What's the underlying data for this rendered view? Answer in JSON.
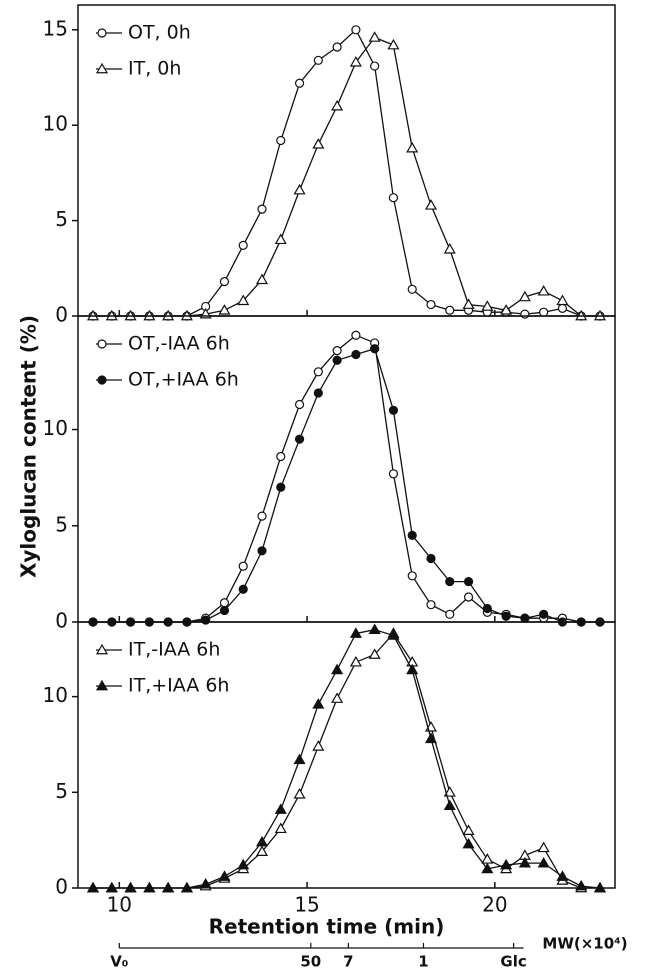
{
  "chart_data": [
    {
      "type": "line",
      "xlim": [
        8.9,
        23.2
      ],
      "ylim": [
        0,
        16.3
      ],
      "yticks": [
        0,
        5,
        10,
        15
      ],
      "legend": "upper left",
      "x": [
        9.3,
        9.8,
        10.3,
        10.8,
        11.3,
        11.8,
        12.3,
        12.8,
        13.3,
        13.8,
        14.3,
        14.8,
        15.3,
        15.8,
        16.3,
        16.8,
        17.3,
        17.8,
        18.3,
        18.8,
        19.3,
        19.8,
        20.3,
        20.8,
        21.3,
        21.8,
        22.3,
        22.8
      ],
      "series": [
        {
          "name": "OT, 0h",
          "color": "#111111",
          "marker": "circle",
          "filled": false,
          "values": [
            0,
            0,
            0,
            0,
            0,
            0,
            0.5,
            1.8,
            3.7,
            5.6,
            9.2,
            12.2,
            13.4,
            14.1,
            15.0,
            13.1,
            6.2,
            1.4,
            0.6,
            0.3,
            0.3,
            0.2,
            0.2,
            0.1,
            0.2,
            0.4,
            0,
            0
          ]
        },
        {
          "name": "IT, 0h",
          "color": "#111111",
          "marker": "triangle",
          "filled": false,
          "values": [
            0,
            0,
            0,
            0,
            0,
            0,
            0.1,
            0.3,
            0.8,
            1.9,
            4.0,
            6.6,
            9.0,
            11.0,
            13.3,
            14.6,
            14.2,
            8.8,
            5.8,
            3.5,
            0.6,
            0.5,
            0.3,
            1.0,
            1.3,
            0.8,
            0,
            0
          ]
        }
      ]
    },
    {
      "type": "line",
      "xlim": [
        8.9,
        23.2
      ],
      "ylim": [
        0,
        15.9
      ],
      "yticks": [
        0,
        5,
        10
      ],
      "legend": "upper left",
      "ylabel": "Xyloglucan content (%)",
      "x": [
        9.3,
        9.8,
        10.3,
        10.8,
        11.3,
        11.8,
        12.3,
        12.8,
        13.3,
        13.8,
        14.3,
        14.8,
        15.3,
        15.8,
        16.3,
        16.8,
        17.3,
        17.8,
        18.3,
        18.8,
        19.3,
        19.8,
        20.3,
        20.8,
        21.3,
        21.8,
        22.3,
        22.8
      ],
      "series": [
        {
          "name": "OT,-IAA 6h",
          "color": "#111111",
          "marker": "circle",
          "filled": false,
          "values": [
            0,
            0,
            0,
            0,
            0,
            0,
            0.2,
            1.0,
            2.9,
            5.5,
            8.6,
            11.3,
            13.0,
            14.1,
            14.9,
            14.5,
            7.7,
            2.4,
            0.9,
            0.4,
            1.3,
            0.5,
            0.4,
            0.2,
            0.2,
            0.2,
            0,
            0
          ]
        },
        {
          "name": "OT,+IAA 6h",
          "color": "#111111",
          "marker": "circle",
          "filled": true,
          "values": [
            0,
            0,
            0,
            0,
            0,
            0,
            0.1,
            0.6,
            1.7,
            3.7,
            7.0,
            9.5,
            11.9,
            13.6,
            13.9,
            14.2,
            11.0,
            4.5,
            3.3,
            2.1,
            2.1,
            0.7,
            0.3,
            0.2,
            0.4,
            0,
            0,
            0
          ]
        }
      ]
    },
    {
      "type": "line",
      "xlim": [
        8.9,
        23.2
      ],
      "ylim": [
        0,
        13.9
      ],
      "yticks": [
        0,
        5,
        10
      ],
      "legend": "upper left",
      "xticks": [
        10,
        15,
        20
      ],
      "xlabel": "Retention time (min)",
      "x2label": "MW(×10⁴)",
      "x2ticks": [
        {
          "value": 10,
          "label": "V₀"
        },
        {
          "value": 15.1,
          "label": "50"
        },
        {
          "value": 16.1,
          "label": "7"
        },
        {
          "value": 18.1,
          "label": "1"
        },
        {
          "value": 20.5,
          "label": "Glc"
        }
      ],
      "x": [
        9.3,
        9.8,
        10.3,
        10.8,
        11.3,
        11.8,
        12.3,
        12.8,
        13.3,
        13.8,
        14.3,
        14.8,
        15.3,
        15.8,
        16.3,
        16.8,
        17.3,
        17.8,
        18.3,
        18.8,
        19.3,
        19.8,
        20.3,
        20.8,
        21.3,
        21.8,
        22.3,
        22.8
      ],
      "series": [
        {
          "name": "IT,-IAA 6h",
          "color": "#111111",
          "marker": "triangle",
          "filled": false,
          "values": [
            0,
            0,
            0,
            0,
            0,
            0,
            0.1,
            0.5,
            1.0,
            1.9,
            3.1,
            4.9,
            7.4,
            9.9,
            11.8,
            12.2,
            13.3,
            11.8,
            8.4,
            5.0,
            3.0,
            1.5,
            1.0,
            1.7,
            2.1,
            0.4,
            0,
            0
          ]
        },
        {
          "name": "IT,+IAA 6h",
          "color": "#111111",
          "marker": "triangle",
          "filled": true,
          "values": [
            0,
            0,
            0,
            0,
            0,
            0,
            0.2,
            0.6,
            1.2,
            2.4,
            4.1,
            6.7,
            9.6,
            11.4,
            13.3,
            13.5,
            13.2,
            11.4,
            7.8,
            4.3,
            2.3,
            1.0,
            1.2,
            1.3,
            1.3,
            0.6,
            0.1,
            0
          ]
        }
      ]
    }
  ]
}
